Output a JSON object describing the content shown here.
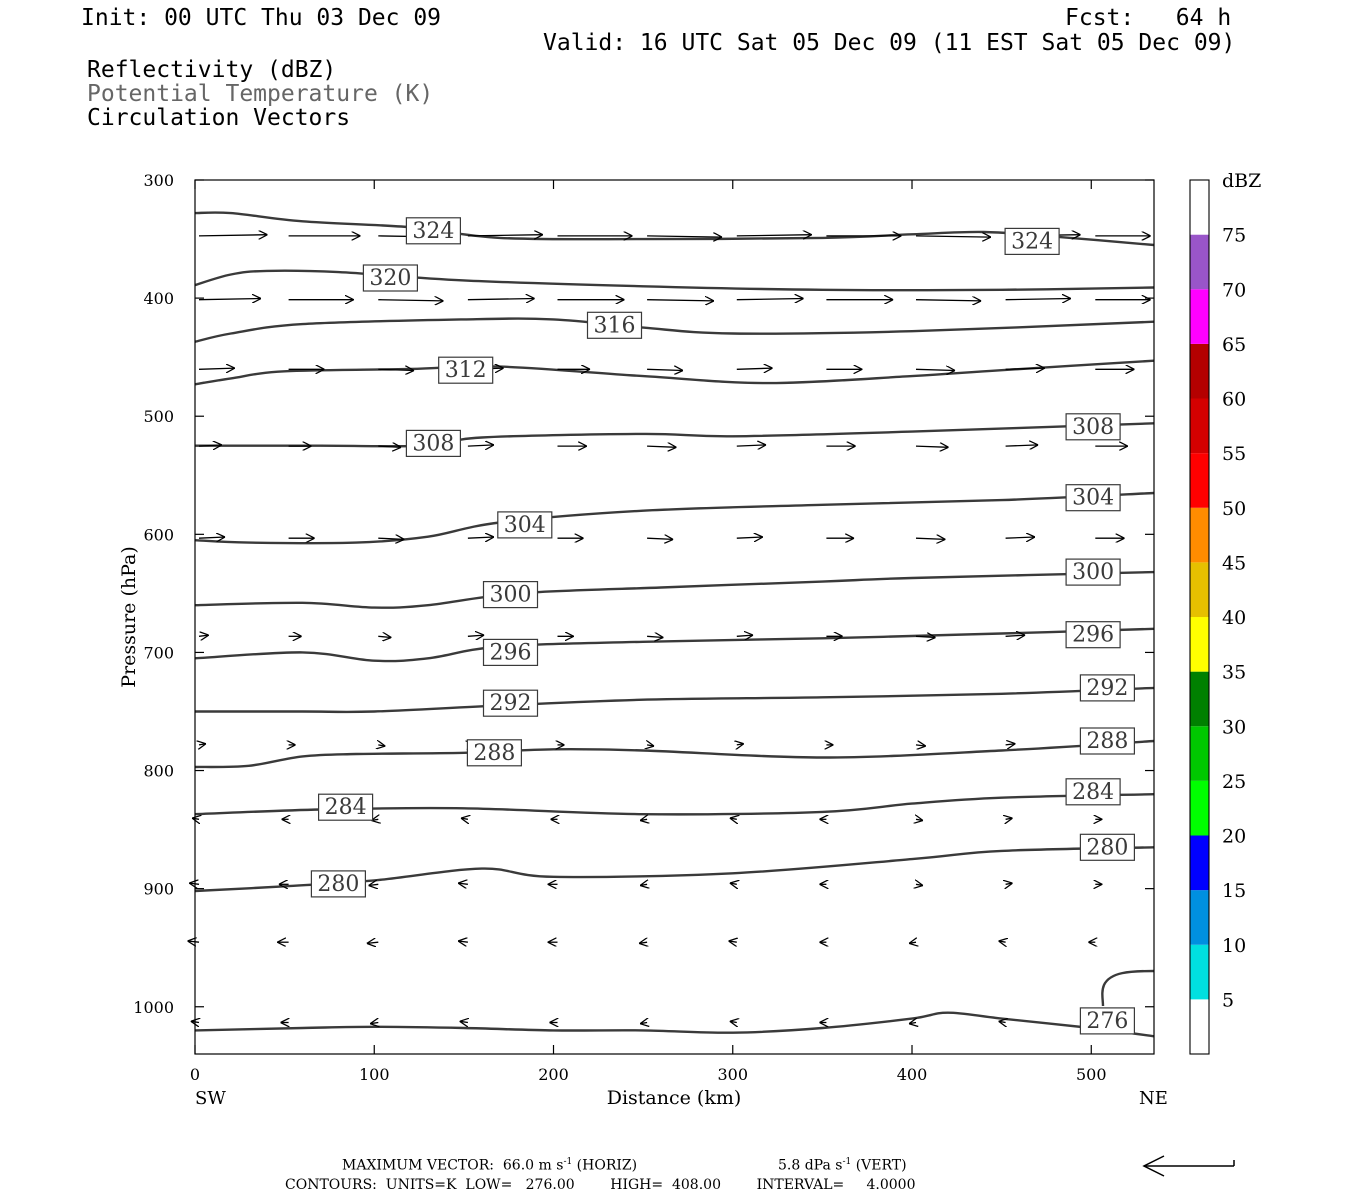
{
  "header": {
    "init": "Init: 00 UTC Thu 03 Dec 09",
    "fcst": "Fcst:   64 h",
    "valid": "Valid: 16 UTC Sat 05 Dec 09 (11 EST Sat 05 Dec 09)",
    "fields": [
      {
        "label": "Reflectivity (dBZ)",
        "color": "#000000"
      },
      {
        "label": "Potential Temperature (K)",
        "color": "#666666"
      },
      {
        "label": "Circulation Vectors",
        "color": "#000000"
      }
    ]
  },
  "footer": {
    "max_vector_label": "MAXIMUM VECTOR:",
    "max_vector_horiz_value": "66.0",
    "max_vector_horiz_unit": "m s",
    "max_vector_horiz_exp": "-1",
    "max_vector_horiz_tag": "(HORIZ)",
    "max_vector_vert_value": "5.8",
    "max_vector_vert_unit": "dPa s",
    "max_vector_vert_exp": "-1",
    "max_vector_vert_tag": "(VERT)",
    "contours": "CONTOURS:  UNITS=K  LOW=   276.00        HIGH=  408.00        INTERVAL=     4.0000"
  },
  "chart_data": {
    "type": "line",
    "xlabel": "Distance (km)",
    "ylabel": "Pressure (hPa)",
    "xlim": [
      0,
      535
    ],
    "ylim": [
      1040,
      300
    ],
    "x_ticks": [
      0,
      100,
      200,
      300,
      400,
      500
    ],
    "y_ticks": [
      300,
      400,
      500,
      600,
      700,
      800,
      900,
      1000
    ],
    "x_end_labels": {
      "left": "SW",
      "right": "NE"
    },
    "grid": false,
    "series": [
      {
        "theta": 324,
        "x": [
          0,
          20,
          60,
          120,
          170,
          250,
          350,
          400,
          440,
          480,
          535
        ],
        "p": [
          328,
          328,
          335,
          340,
          349,
          350,
          349,
          346,
          344,
          348,
          355
        ]
      },
      {
        "theta": 320,
        "x": [
          0,
          20,
          40,
          80,
          150,
          250,
          350,
          450,
          535
        ],
        "p": [
          389,
          380,
          377,
          378,
          385,
          390,
          393,
          393,
          391
        ]
      },
      {
        "theta": 316,
        "x": [
          0,
          20,
          60,
          150,
          200,
          250,
          300,
          400,
          535
        ],
        "p": [
          437,
          430,
          422,
          418,
          418,
          425,
          430,
          428,
          420
        ]
      },
      {
        "theta": 312,
        "x": [
          0,
          20,
          50,
          120,
          170,
          250,
          320,
          400,
          450,
          535
        ],
        "p": [
          473,
          468,
          462,
          460,
          458,
          466,
          472,
          466,
          461,
          453
        ]
      },
      {
        "theta": 308,
        "x": [
          0,
          70,
          130,
          160,
          250,
          300,
          400,
          535
        ],
        "p": [
          525,
          525,
          525,
          518,
          515,
          517,
          513,
          506
        ]
      },
      {
        "theta": 304,
        "x": [
          0,
          30,
          90,
          130,
          170,
          250,
          350,
          450,
          535
        ],
        "p": [
          605,
          607,
          607,
          602,
          590,
          580,
          575,
          571,
          565
        ]
      },
      {
        "theta": 300,
        "x": [
          0,
          60,
          100,
          130,
          180,
          260,
          350,
          400,
          535
        ],
        "p": [
          660,
          658,
          662,
          660,
          650,
          645,
          640,
          637,
          632
        ]
      },
      {
        "theta": 296,
        "x": [
          0,
          60,
          100,
          130,
          170,
          250,
          350,
          450,
          535
        ],
        "p": [
          705,
          700,
          707,
          705,
          695,
          691,
          688,
          684,
          680
        ]
      },
      {
        "theta": 292,
        "x": [
          0,
          60,
          100,
          170,
          250,
          350,
          450,
          535
        ],
        "p": [
          750,
          750,
          750,
          745,
          740,
          738,
          735,
          730
        ]
      },
      {
        "theta": 288,
        "x": [
          0,
          30,
          60,
          90,
          150,
          200,
          250,
          350,
          450,
          535
        ],
        "p": [
          797,
          796,
          788,
          786,
          785,
          782,
          783,
          789,
          783,
          775
        ]
      },
      {
        "theta": 284,
        "x": [
          0,
          70,
          150,
          250,
          350,
          400,
          450,
          535
        ],
        "p": [
          837,
          833,
          832,
          837,
          835,
          828,
          823,
          820
        ]
      },
      {
        "theta": 280,
        "x": [
          0,
          50,
          100,
          160,
          200,
          300,
          400,
          450,
          535
        ],
        "p": [
          902,
          898,
          893,
          883,
          890,
          887,
          875,
          868,
          865
        ]
      },
      {
        "theta": 276,
        "x": [
          0,
          60,
          100,
          150,
          200,
          250,
          300,
          350,
          400,
          420,
          450,
          500,
          535
        ],
        "p": [
          1020,
          1018,
          1017,
          1018,
          1020,
          1020,
          1022,
          1018,
          1010,
          1005,
          1010,
          1018,
          1025
        ]
      }
    ],
    "contour_labels": [
      {
        "text": "324",
        "x": 133,
        "p": 343
      },
      {
        "text": "324",
        "x": 467,
        "p": 352
      },
      {
        "text": "320",
        "x": 109,
        "p": 383
      },
      {
        "text": "316",
        "x": 234,
        "p": 423
      },
      {
        "text": "312",
        "x": 151,
        "p": 461
      },
      {
        "text": "308",
        "x": 133,
        "p": 523
      },
      {
        "text": "308",
        "x": 501,
        "p": 509
      },
      {
        "text": "304",
        "x": 501,
        "p": 569
      },
      {
        "text": "304",
        "x": 184,
        "p": 592
      },
      {
        "text": "300",
        "x": 176,
        "p": 651
      },
      {
        "text": "300",
        "x": 501,
        "p": 632
      },
      {
        "text": "296",
        "x": 176,
        "p": 700
      },
      {
        "text": "296",
        "x": 501,
        "p": 685
      },
      {
        "text": "292",
        "x": 176,
        "p": 743
      },
      {
        "text": "292",
        "x": 509,
        "p": 730
      },
      {
        "text": "288",
        "x": 167,
        "p": 785
      },
      {
        "text": "288",
        "x": 509,
        "p": 775
      },
      {
        "text": "284",
        "x": 84,
        "p": 831
      },
      {
        "text": "284",
        "x": 501,
        "p": 818
      },
      {
        "text": "280",
        "x": 80,
        "p": 896
      },
      {
        "text": "280",
        "x": 509,
        "p": 865
      },
      {
        "text": "276",
        "x": 509,
        "p": 1012
      }
    ],
    "vectors": {
      "x": [
        0,
        50,
        100,
        150,
        200,
        250,
        300,
        350,
        400,
        450,
        500
      ],
      "rows": [
        {
          "p": 349,
          "u": [
            42,
            44,
            45,
            46,
            46,
            46,
            46,
            46,
            46,
            46,
            34
          ]
        },
        {
          "p": 403,
          "u": [
            38,
            40,
            40,
            41,
            41,
            41,
            41,
            41,
            40,
            40,
            34
          ]
        },
        {
          "p": 462,
          "u": [
            22,
            22,
            22,
            22,
            20,
            22,
            22,
            22,
            24,
            24,
            24
          ]
        },
        {
          "p": 527,
          "u": [
            14,
            14,
            14,
            16,
            18,
            18,
            18,
            18,
            20,
            20,
            20
          ]
        },
        {
          "p": 605,
          "u": [
            16,
            16,
            16,
            16,
            16,
            16,
            16,
            17,
            18,
            18,
            18
          ]
        },
        {
          "p": 688,
          "u": [
            6,
            8,
            8,
            10,
            10,
            10,
            10,
            10,
            12,
            12,
            12
          ]
        },
        {
          "p": 780,
          "u": [
            2,
            2,
            2,
            4,
            4,
            4,
            4,
            4,
            6,
            6,
            6
          ]
        },
        {
          "p": 843,
          "u": [
            -3,
            -4,
            -4,
            -4,
            -4,
            -4,
            -4,
            -2,
            0,
            2,
            2
          ]
        },
        {
          "p": 898,
          "u": [
            -6,
            -6,
            -6,
            -6,
            -6,
            -4,
            -4,
            -2,
            0,
            2,
            2
          ]
        },
        {
          "p": 947,
          "u": [
            -7,
            -7,
            -7,
            -6,
            -6,
            -5,
            -5,
            -4,
            -4,
            -3,
            -3
          ]
        },
        {
          "p": 1015,
          "u": [
            -5,
            -5,
            -5,
            -5,
            -5,
            -4,
            -4,
            -4,
            -4,
            -4,
            -4
          ]
        }
      ]
    },
    "colorbar": {
      "title": "dBZ",
      "ticks": [
        5,
        10,
        15,
        20,
        25,
        30,
        35,
        40,
        45,
        50,
        55,
        60,
        65,
        70,
        75
      ],
      "colors": [
        "#ffffff",
        "#00e0e0",
        "#0090e0",
        "#0000ff",
        "#00ff00",
        "#00c800",
        "#008000",
        "#ffff00",
        "#e6c000",
        "#ff8c00",
        "#ff0000",
        "#d40000",
        "#b40000",
        "#ff00ff",
        "#9955c9",
        "#ffffff"
      ]
    }
  }
}
